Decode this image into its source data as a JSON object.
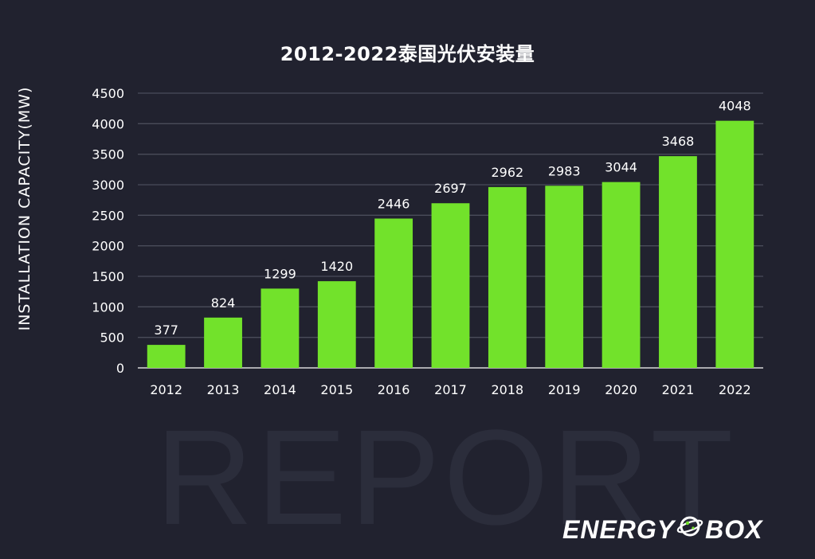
{
  "chart_data": {
    "type": "bar",
    "title": "2012-2022泰国光伏安装量",
    "xlabel": "",
    "ylabel": "INSTALLATION CAPACITY(MW)",
    "categories": [
      "2012",
      "2013",
      "2014",
      "2015",
      "2016",
      "2017",
      "2018",
      "2019",
      "2020",
      "2021",
      "2022"
    ],
    "values": [
      377,
      824,
      1299,
      1420,
      2446,
      2697,
      2962,
      2983,
      3044,
      3468,
      4048
    ],
    "ylim": [
      0,
      4500
    ],
    "yticks": [
      0,
      500,
      1000,
      1500,
      2000,
      2500,
      3000,
      3500,
      4000,
      4500
    ],
    "grid": true,
    "data_labels": true,
    "bar_color": "#72e22b"
  },
  "watermark": "REPORT",
  "logo": {
    "left_text": "ENERGY",
    "right_text": "BOX",
    "icon": "planet-icon"
  },
  "colors": {
    "background": "#21222f",
    "gridline": "#4a4c5a",
    "text": "#ffffff",
    "accent": "#72e22b"
  }
}
